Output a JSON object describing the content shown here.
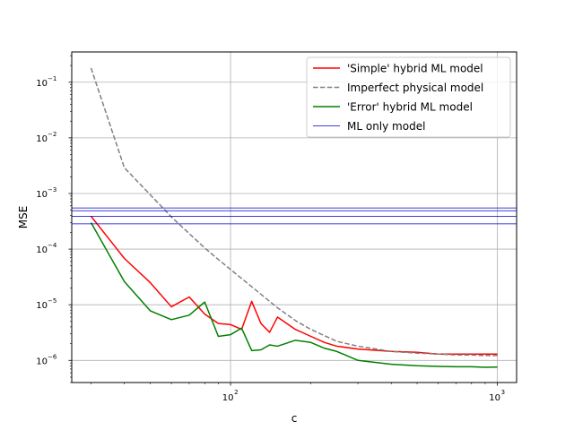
{
  "chart_data": {
    "type": "line",
    "xlabel": "c",
    "ylabel": "MSE",
    "xscale": "log",
    "yscale": "log",
    "xlim": [
      25.4,
      1180
    ],
    "ylim": [
      4e-07,
      0.35
    ],
    "grid": true,
    "legend_position": "top-right",
    "x_ticks": [
      {
        "value": 100,
        "base": "10",
        "exp": "2"
      },
      {
        "value": 1000,
        "base": "10",
        "exp": "3"
      }
    ],
    "y_ticks": [
      {
        "value": 1e-06,
        "base": "10",
        "exp": "−6"
      },
      {
        "value": 1e-05,
        "base": "10",
        "exp": "−5"
      },
      {
        "value": 0.0001,
        "base": "10",
        "exp": "−4"
      },
      {
        "value": 0.001,
        "base": "10",
        "exp": "−3"
      },
      {
        "value": 0.01,
        "base": "10",
        "exp": "−2"
      },
      {
        "value": 0.1,
        "base": "10",
        "exp": "−1"
      }
    ],
    "series": [
      {
        "name": "'Simple' hybrid ML model",
        "color": "#ff0000",
        "style": "solid",
        "x": [
          30,
          40,
          50,
          60,
          70,
          80,
          90,
          100,
          110,
          120,
          130,
          140,
          150,
          175,
          200,
          225,
          250,
          300,
          400,
          500,
          600,
          700,
          800,
          900,
          1000
        ],
        "y": [
          0.00039,
          6.8e-05,
          2.5e-05,
          9.2e-06,
          1.38e-05,
          6.8e-06,
          4.6e-06,
          4.4e-06,
          3.6e-06,
          1.15e-05,
          4.6e-06,
          3.2e-06,
          6e-06,
          3.6e-06,
          2.7e-06,
          2.1e-06,
          1.8e-06,
          1.6e-06,
          1.45e-06,
          1.4e-06,
          1.3e-06,
          1.3e-06,
          1.3e-06,
          1.3e-06,
          1.3e-06
        ]
      },
      {
        "name": "Imperfect physical model",
        "color": "#808080",
        "style": "dashed",
        "x": [
          30,
          40,
          50,
          60,
          70,
          80,
          90,
          100,
          125,
          150,
          175,
          200,
          250,
          300,
          400,
          500,
          600,
          700,
          800,
          900,
          1000
        ],
        "y": [
          0.18,
          0.0029,
          0.00095,
          0.00038,
          0.00019,
          0.000105,
          6.5e-05,
          4.3e-05,
          1.8e-05,
          8.8e-06,
          5.2e-06,
          3.6e-06,
          2.2e-06,
          1.8e-06,
          1.45e-06,
          1.35e-06,
          1.3e-06,
          1.25e-06,
          1.25e-06,
          1.22e-06,
          1.22e-06
        ]
      },
      {
        "name": "'Error' hybrid ML model",
        "color": "#008000",
        "style": "solid",
        "x": [
          30,
          40,
          50,
          60,
          70,
          80,
          90,
          100,
          110,
          120,
          130,
          140,
          150,
          175,
          200,
          225,
          250,
          300,
          400,
          500,
          600,
          700,
          800,
          900,
          1000
        ],
        "y": [
          0.0003,
          2.6e-05,
          7.8e-06,
          5.4e-06,
          6.5e-06,
          1.12e-05,
          2.7e-06,
          2.9e-06,
          3.8e-06,
          1.5e-06,
          1.55e-06,
          1.9e-06,
          1.8e-06,
          2.3e-06,
          2.1e-06,
          1.65e-06,
          1.45e-06,
          1e-06,
          8.5e-07,
          8e-07,
          7.8e-07,
          7.7e-07,
          7.7e-07,
          7.5e-07,
          7.6e-07
        ]
      },
      {
        "name": "ML only model",
        "color": "#0000cc",
        "style": "thin",
        "hlines": [
          0.00055,
          0.00049,
          0.00039,
          0.000285
        ]
      }
    ]
  }
}
